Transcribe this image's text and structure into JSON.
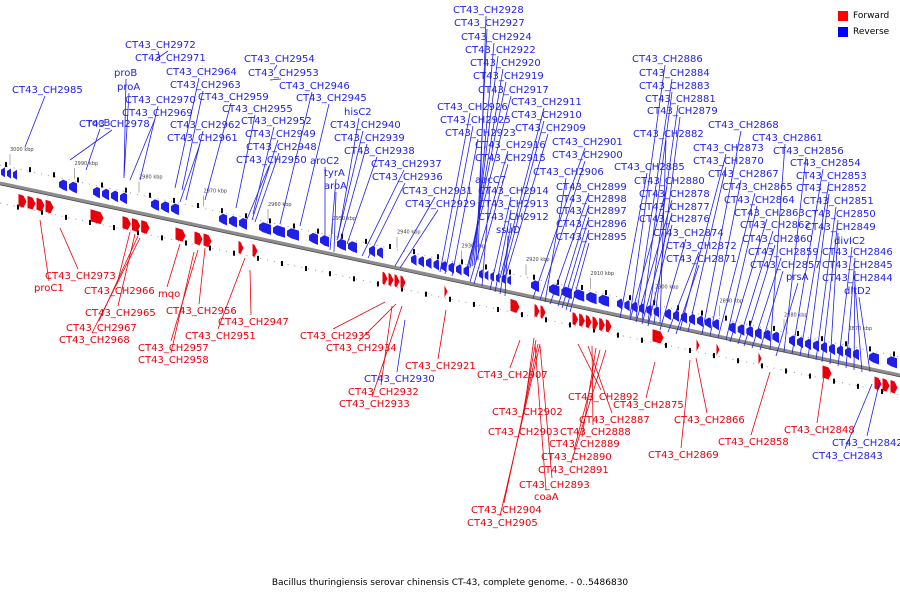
{
  "caption": "Bacillus thuringiensis serovar chinensis CT-43, complete genome. - 0..5486830",
  "legend": [
    {
      "label": "Forward",
      "color": "#ff0000"
    },
    {
      "label": "Reverse",
      "color": "#0000ff"
    }
  ],
  "colors": {
    "forward": "#e8000b",
    "reverse": "#1f1fe8",
    "backbone": "#8c8c8c"
  },
  "ticks": [
    "3000 kbp",
    "2990 kbp",
    "2980 kbp",
    "2970 kbp",
    "2960 kbp",
    "2950 kbp",
    "2940 kbp",
    "2930 kbp",
    "2920 kbp",
    "2910 kbp",
    "2900 kbp",
    "2890 kbp",
    "2880 kbp",
    "2870 kbp"
  ],
  "reverse_labels": [
    "CT43_CH2985",
    "CT43_CH2978",
    "rocB",
    "CT43_CH2972",
    "CT43_CH2971",
    "proB",
    "proA",
    "CT43_CH2970",
    "CT43_CH2969",
    "CT43_CH2964",
    "CT43_CH2963",
    "CT43_CH2959",
    "CT43_CH2962",
    "CT43_CH2961",
    "CT43_CH2955",
    "CT43_CH2954",
    "CT43_CH2953",
    "CT43_CH2952",
    "CT43_CH2949",
    "CT43_CH2948",
    "CT43_CH2950",
    "CT43_CH2946",
    "CT43_CH2945",
    "hisC2",
    "CT43_CH2940",
    "CT43_CH2939",
    "CT43_CH2938",
    "aroC2",
    "tyrA",
    "aroA",
    "CT43_CH2937",
    "CT43_CH2936",
    "CT43_CH2931",
    "CT43_CH2929",
    "CT43_CH2928",
    "CT43_CH2927",
    "CT43_CH2924",
    "CT43_CH2922",
    "CT43_CH2920",
    "CT43_CH2919",
    "CT43_CH2917",
    "CT43_CH2926",
    "CT43_CH2925",
    "CT43_CH2923",
    "CT43_CH2911",
    "CT43_CH2910",
    "CT43_CH2909",
    "CT43_CH2916",
    "CT43_CH2915",
    "aacC7",
    "CT43_CH2914",
    "CT43_CH2913",
    "CT43_CH2912",
    "ssuD",
    "CT43_CH2901",
    "CT43_CH2900",
    "CT43_CH2906",
    "CT43_CH2899",
    "CT43_CH2898",
    "CT43_CH2897",
    "CT43_CH2896",
    "CT43_CH2895",
    "CT43_CH2886",
    "CT43_CH2884",
    "CT43_CH2883",
    "CT43_CH2881",
    "CT43_CH2879",
    "CT43_CH2882",
    "CT43_CH2885",
    "CT43_CH2880",
    "CT43_CH2878",
    "CT43_CH2877",
    "CT43_CH2876",
    "CT43_CH2874",
    "CT43_CH2872",
    "CT43_CH2871",
    "CT43_CH2873",
    "CT43_CH2870",
    "CT43_CH2868",
    "CT43_CH2867",
    "CT43_CH2865",
    "CT43_CH2864",
    "CT43_CH2863",
    "CT43_CH2862",
    "CT43_CH2860",
    "CT43_CH2859",
    "CT43_CH2857",
    "CT43_CH2861",
    "CT43_CH2856",
    "CT43_CH2854",
    "CT43_CH2853",
    "CT43_CH2852",
    "CT43_CH2851",
    "CT43_CH2850",
    "CT43_CH2849",
    "divIC2",
    "CT43_CH2846",
    "CT43_CH2845",
    "CT43_CH2844",
    "prsA",
    "dltD2",
    "CT43_CH2930",
    "CT43_CH2842",
    "CT43_CH2843"
  ],
  "forward_labels": [
    "CT43_CH2973",
    "proC1",
    "CT43_CH2966",
    "mqo",
    "CT43_CH2965",
    "CT43_CH2967",
    "CT43_CH2968",
    "CT43_CH2956",
    "CT43_CH2957",
    "CT43_CH2958",
    "CT43_CH2951",
    "CT43_CH2947",
    "CT43_CH2935",
    "CT43_CH2934",
    "CT43_CH2932",
    "CT43_CH2933",
    "CT43_CH2921",
    "CT43_CH2907",
    "CT43_CH2902",
    "CT43_CH2903",
    "CT43_CH2892",
    "CT43_CH2887",
    "CT43_CH2888",
    "CT43_CH2889",
    "CT43_CH2890",
    "CT43_CH2891",
    "CT43_CH2893",
    "coaA",
    "CT43_CH2904",
    "CT43_CH2905",
    "CT43_CH2875",
    "CT43_CH2866",
    "CT43_CH2869",
    "CT43_CH2858",
    "CT43_CH2848"
  ]
}
